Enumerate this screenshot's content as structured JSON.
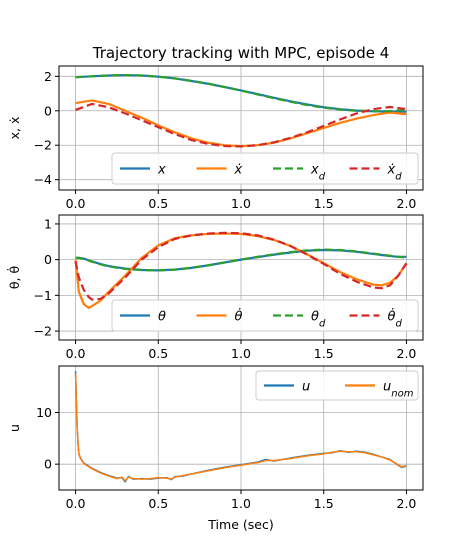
{
  "chart_data": [
    {
      "type": "line",
      "title": "Trajectory tracking with MPC, episode 4",
      "xlabel": "",
      "ylabel": "x, ẋ",
      "xlim": [
        -0.1,
        2.1
      ],
      "ylim": [
        -4.6,
        2.6
      ],
      "xticks": [
        "0.0",
        "0.5",
        "1.0",
        "1.5",
        "2.0"
      ],
      "xtick_values": [
        0.0,
        0.5,
        1.0,
        1.5,
        2.0
      ],
      "yticks": [
        "2",
        "0",
        "−2",
        "−4"
      ],
      "ytick_values": [
        2,
        0,
        -2,
        -4
      ],
      "grid": true,
      "legend": {
        "placement": "lower-right",
        "columns": 4
      },
      "x": [
        0.0,
        0.1,
        0.2,
        0.3,
        0.4,
        0.5,
        0.6,
        0.7,
        0.8,
        0.9,
        1.0,
        1.1,
        1.2,
        1.3,
        1.4,
        1.5,
        1.6,
        1.7,
        1.8,
        1.9,
        2.0
      ],
      "series": [
        {
          "name": "x",
          "color": "#1f77b4",
          "dash": "solid",
          "values": [
            1.95,
            2.0,
            2.05,
            2.07,
            2.05,
            1.98,
            1.88,
            1.73,
            1.57,
            1.38,
            1.18,
            0.97,
            0.75,
            0.55,
            0.37,
            0.21,
            0.09,
            0.01,
            -0.03,
            -0.04,
            -0.05
          ]
        },
        {
          "name": "ẋ",
          "color": "#ff7f0e",
          "dash": "solid",
          "values": [
            0.45,
            0.6,
            0.4,
            0.0,
            -0.4,
            -0.85,
            -1.25,
            -1.6,
            -1.85,
            -2.0,
            -2.05,
            -2.0,
            -1.85,
            -1.6,
            -1.3,
            -1.0,
            -0.7,
            -0.45,
            -0.25,
            -0.1,
            -0.2
          ]
        },
        {
          "name": "x_d",
          "color": "#2ca02c",
          "dash": "dashed",
          "values": [
            1.95,
            2.0,
            2.05,
            2.07,
            2.05,
            1.98,
            1.88,
            1.74,
            1.58,
            1.38,
            1.17,
            0.95,
            0.73,
            0.52,
            0.33,
            0.18,
            0.07,
            0.0,
            -0.03,
            -0.02,
            0.05
          ]
        },
        {
          "name": "ẋ_d",
          "color": "#d62728",
          "dash": "dashed",
          "values": [
            0.05,
            0.4,
            0.2,
            -0.15,
            -0.55,
            -0.95,
            -1.35,
            -1.7,
            -1.92,
            -2.05,
            -2.07,
            -2.0,
            -1.83,
            -1.57,
            -1.25,
            -0.88,
            -0.5,
            -0.15,
            0.1,
            0.22,
            0.1
          ]
        }
      ]
    },
    {
      "type": "line",
      "title": "",
      "xlabel": "",
      "ylabel": "θ, θ̇",
      "xlim": [
        -0.1,
        2.1
      ],
      "ylim": [
        -2.25,
        1.25
      ],
      "xticks": [
        "0.0",
        "0.5",
        "1.0",
        "1.5",
        "2.0"
      ],
      "xtick_values": [
        0.0,
        0.5,
        1.0,
        1.5,
        2.0
      ],
      "yticks": [
        "1",
        "0",
        "−1",
        "−2"
      ],
      "ytick_values": [
        1,
        0,
        -1,
        -2
      ],
      "grid": true,
      "legend": {
        "placement": "lower-right",
        "columns": 4
      },
      "x": [
        0.0,
        0.02,
        0.05,
        0.08,
        0.1,
        0.15,
        0.2,
        0.3,
        0.4,
        0.5,
        0.6,
        0.7,
        0.8,
        0.9,
        1.0,
        1.1,
        1.2,
        1.3,
        1.4,
        1.5,
        1.6,
        1.7,
        1.8,
        1.85,
        1.9,
        1.95,
        2.0
      ],
      "series": [
        {
          "name": "θ",
          "color": "#1f77b4",
          "dash": "solid",
          "values": [
            0.05,
            0.05,
            0.03,
            -0.02,
            -0.05,
            -0.12,
            -0.18,
            -0.25,
            -0.29,
            -0.3,
            -0.28,
            -0.23,
            -0.16,
            -0.08,
            0.0,
            0.07,
            0.14,
            0.2,
            0.25,
            0.27,
            0.26,
            0.22,
            0.16,
            0.13,
            0.1,
            0.08,
            0.08
          ]
        },
        {
          "name": "θ̇",
          "color": "#ff7f0e",
          "dash": "solid",
          "values": [
            0.0,
            -0.9,
            -1.25,
            -1.35,
            -1.3,
            -1.15,
            -0.9,
            -0.45,
            0.05,
            0.4,
            0.6,
            0.68,
            0.72,
            0.73,
            0.72,
            0.66,
            0.55,
            0.38,
            0.15,
            -0.1,
            -0.35,
            -0.55,
            -0.7,
            -0.72,
            -0.65,
            -0.45,
            -0.1
          ]
        },
        {
          "name": "θ_d",
          "color": "#2ca02c",
          "dash": "dashed",
          "values": [
            0.05,
            0.05,
            0.02,
            -0.03,
            -0.06,
            -0.13,
            -0.19,
            -0.26,
            -0.29,
            -0.3,
            -0.28,
            -0.23,
            -0.16,
            -0.08,
            0.0,
            0.08,
            0.15,
            0.21,
            0.26,
            0.28,
            0.27,
            0.23,
            0.17,
            0.14,
            0.11,
            0.08,
            0.06
          ]
        },
        {
          "name": "θ̇_d",
          "color": "#d62728",
          "dash": "dashed",
          "values": [
            -0.05,
            -0.5,
            -0.85,
            -1.05,
            -1.12,
            -1.1,
            -0.95,
            -0.5,
            0.0,
            0.35,
            0.58,
            0.68,
            0.73,
            0.75,
            0.74,
            0.68,
            0.56,
            0.38,
            0.14,
            -0.12,
            -0.4,
            -0.62,
            -0.78,
            -0.8,
            -0.72,
            -0.45,
            -0.1
          ]
        }
      ]
    },
    {
      "type": "line",
      "title": "",
      "xlabel": "Time (sec)",
      "ylabel": "u",
      "xlim": [
        -0.1,
        2.1
      ],
      "ylim": [
        -5.0,
        19.0
      ],
      "xticks": [
        "0.0",
        "0.5",
        "1.0",
        "1.5",
        "2.0"
      ],
      "xtick_values": [
        0.0,
        0.5,
        1.0,
        1.5,
        2.0
      ],
      "yticks": [
        "10",
        "0"
      ],
      "ytick_values": [
        10,
        0
      ],
      "grid": true,
      "legend": {
        "placement": "upper-right",
        "columns": 2
      },
      "x": [
        0.0,
        0.005,
        0.01,
        0.015,
        0.02,
        0.03,
        0.05,
        0.08,
        0.1,
        0.15,
        0.2,
        0.25,
        0.28,
        0.3,
        0.32,
        0.35,
        0.4,
        0.45,
        0.5,
        0.55,
        0.58,
        0.6,
        0.65,
        0.7,
        0.8,
        0.9,
        1.0,
        1.1,
        1.15,
        1.2,
        1.3,
        1.4,
        1.5,
        1.55,
        1.6,
        1.65,
        1.7,
        1.75,
        1.8,
        1.85,
        1.9,
        1.95,
        1.97,
        2.0
      ],
      "series": [
        {
          "name": "u",
          "color": "#1f77b4",
          "dash": "solid",
          "values": [
            18.0,
            12.0,
            7.0,
            4.0,
            2.0,
            1.2,
            0.2,
            -0.4,
            -0.8,
            -1.6,
            -2.2,
            -2.7,
            -2.6,
            -3.4,
            -2.4,
            -2.9,
            -2.8,
            -2.9,
            -2.7,
            -2.6,
            -3.0,
            -2.4,
            -2.3,
            -1.9,
            -1.2,
            -0.6,
            -0.1,
            0.4,
            0.9,
            0.6,
            1.2,
            1.7,
            2.1,
            2.2,
            2.6,
            2.3,
            2.5,
            2.3,
            1.9,
            1.4,
            0.9,
            -0.2,
            -0.6,
            -0.4
          ]
        },
        {
          "name": "u_nom",
          "color": "#ff7f0e",
          "dash": "solid",
          "values": [
            17.6,
            11.8,
            6.8,
            3.9,
            1.9,
            1.1,
            0.1,
            -0.5,
            -0.9,
            -1.7,
            -2.3,
            -2.8,
            -2.5,
            -3.2,
            -2.5,
            -2.8,
            -2.9,
            -2.8,
            -2.6,
            -2.7,
            -2.9,
            -2.5,
            -2.2,
            -1.9,
            -1.3,
            -0.7,
            -0.2,
            0.3,
            0.7,
            0.7,
            1.1,
            1.6,
            2.0,
            2.3,
            2.5,
            2.4,
            2.4,
            2.2,
            1.8,
            1.4,
            0.8,
            -0.1,
            -0.5,
            -0.3
          ]
        }
      ]
    }
  ]
}
